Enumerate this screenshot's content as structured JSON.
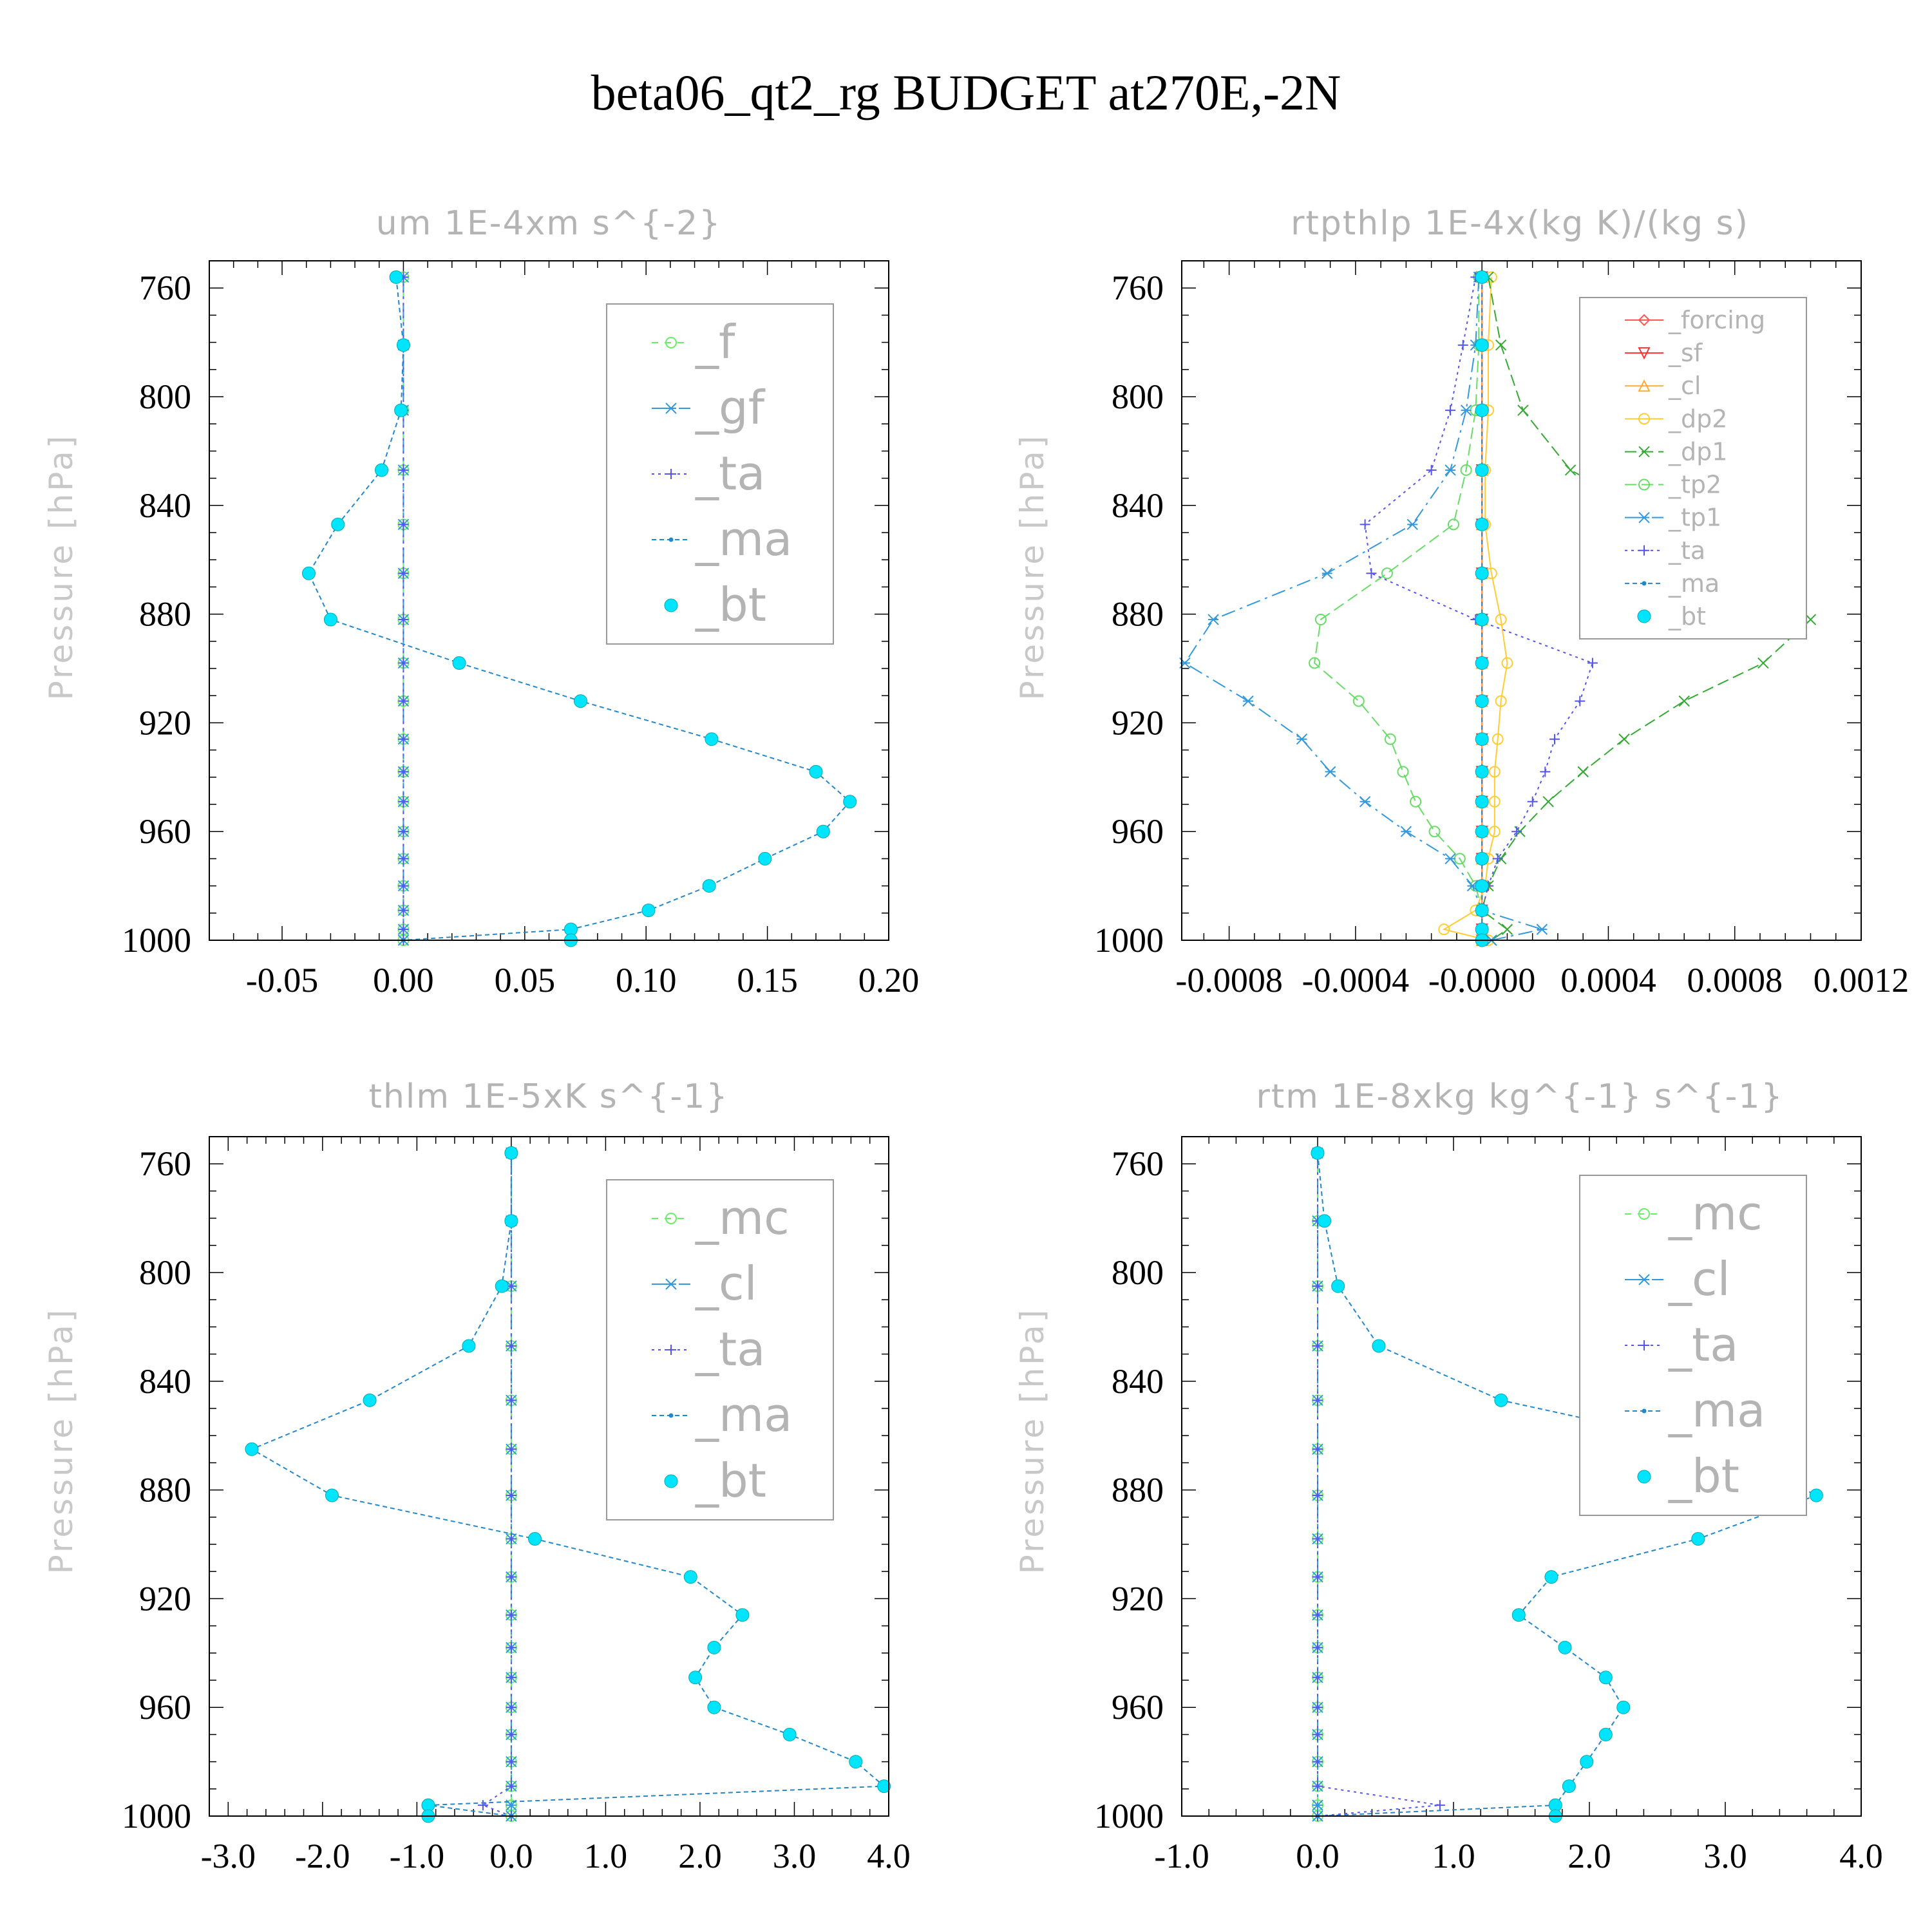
{
  "suptitle": "beta06_qt2_rg  BUDGET at270E,-2N",
  "chart_data": [
    {
      "type": "line",
      "title": "um  1E-4xm s^{-2}",
      "ylabel": "Pressure [hPa]",
      "ylim": [
        1000,
        750
      ],
      "yticks": [
        760,
        800,
        840,
        880,
        920,
        960,
        1000
      ],
      "xlim": [
        -0.08,
        0.2
      ],
      "xticks": [
        -0.05,
        0.0,
        0.05,
        0.1,
        0.15,
        0.2
      ],
      "xticklabels": [
        "-0.05",
        "0.00",
        "0.05",
        "0.10",
        "0.15",
        "0.20"
      ],
      "legend": {
        "position": "top-right",
        "font": "large",
        "entries": [
          "_f",
          "_gf",
          "_ta",
          "_ma",
          "_bt"
        ]
      },
      "p": [
        756,
        781,
        805,
        827,
        847,
        865,
        882,
        898,
        912,
        926,
        938,
        949,
        960,
        970,
        980,
        989,
        996,
        1000
      ],
      "series": [
        {
          "name": "_f",
          "color": "#66ee66",
          "dash": "10,10",
          "marker": "circle-open",
          "values": [
            0,
            0,
            0,
            0,
            0,
            0,
            0,
            0,
            0,
            0,
            0,
            0,
            0,
            0,
            0,
            0,
            0,
            0
          ]
        },
        {
          "name": "_gf",
          "color": "#3399dd",
          "dash": "22,8,4,8",
          "marker": "star",
          "values": [
            0,
            0,
            0,
            0,
            0,
            0,
            0,
            0,
            0,
            0,
            0,
            0,
            0,
            0,
            0,
            0,
            0,
            0
          ]
        },
        {
          "name": "_ta",
          "color": "#5555ee",
          "dash": "4,6",
          "marker": "plus",
          "values": [
            0,
            0,
            0,
            0,
            0,
            0,
            0,
            0,
            0,
            0,
            0,
            0,
            0,
            0,
            0,
            0,
            0,
            0
          ]
        },
        {
          "name": "_ma",
          "color": "#2288cc",
          "dash": "7,5",
          "marker": "dot",
          "values": [
            -0.003,
            0.0,
            -0.001,
            -0.009,
            -0.027,
            -0.039,
            -0.03,
            0.023,
            0.073,
            0.127,
            0.17,
            0.184,
            0.173,
            0.149,
            0.126,
            0.101,
            0.069,
            0.0
          ]
        },
        {
          "name": "_bt",
          "color": "#00e5ff",
          "dash": "",
          "marker": "filled",
          "values": [
            -0.003,
            0.0,
            -0.001,
            -0.009,
            -0.027,
            -0.039,
            -0.03,
            0.023,
            0.073,
            0.127,
            0.17,
            0.184,
            0.173,
            0.149,
            0.126,
            0.101,
            0.069,
            0.069
          ]
        }
      ]
    },
    {
      "type": "line",
      "title": "rtpthlp  1E-4x(kg K)/(kg s)",
      "ylabel": "Pressure [hPa]",
      "ylim": [
        1000,
        750
      ],
      "yticks": [
        760,
        800,
        840,
        880,
        920,
        960,
        1000
      ],
      "xlim": [
        -0.00095,
        0.0012
      ],
      "xticks": [
        -0.0008,
        -0.0004,
        0.0,
        0.0004,
        0.0008,
        0.0012
      ],
      "xticklabels": [
        "-0.0008",
        "-0.0004",
        "-0.0000",
        "0.0004",
        "0.0008",
        "0.0012"
      ],
      "legend": {
        "position": "top-right",
        "font": "small",
        "entries": [
          "_forcing",
          "_sf",
          "_cl",
          "_dp2",
          "_dp1",
          "_tp2",
          "_tp1",
          "_ta",
          "_ma",
          "_bt"
        ]
      },
      "p": [
        756,
        781,
        805,
        827,
        847,
        865,
        882,
        898,
        912,
        926,
        938,
        949,
        960,
        970,
        980,
        989,
        996,
        1000
      ],
      "series": [
        {
          "name": "_forcing",
          "color": "#ff5555",
          "dash": "",
          "marker": "diamond",
          "values": [
            0,
            0,
            0,
            0,
            0,
            0,
            0,
            0,
            0,
            0,
            0,
            0,
            0,
            0,
            0,
            0,
            0,
            0
          ]
        },
        {
          "name": "_sf",
          "color": "#ff3333",
          "dash": "",
          "marker": "tri-down",
          "values": [
            0,
            0,
            0,
            0,
            0,
            0,
            0,
            0,
            0,
            0,
            0,
            0,
            0,
            0,
            0,
            0,
            0,
            0
          ]
        },
        {
          "name": "_cl",
          "color": "#ffaa33",
          "dash": "",
          "marker": "tri-up",
          "values": [
            0,
            0,
            0,
            0,
            0,
            0,
            0,
            0,
            0,
            0,
            0,
            0,
            0,
            0,
            0,
            0,
            0,
            0
          ]
        },
        {
          "name": "_dp2",
          "color": "#ffcc33",
          "dash": "",
          "marker": "circle-open",
          "values": [
            3e-05,
            2e-05,
            2e-05,
            1e-05,
            1e-05,
            3e-05,
            6e-05,
            8e-05,
            6e-05,
            5e-05,
            4e-05,
            4e-05,
            4e-05,
            2e-05,
            1e-05,
            -2e-05,
            -0.00012,
            2e-05
          ]
        },
        {
          "name": "_dp1",
          "color": "#33aa33",
          "dash": "18,8",
          "marker": "cross",
          "values": [
            2e-05,
            6e-05,
            0.00013,
            0.00028,
            0.0006,
            0.0009,
            0.00104,
            0.00089,
            0.00064,
            0.00045,
            0.00032,
            0.00021,
            0.00012,
            6e-05,
            2e-05,
            0.0,
            8e-05,
            3e-05
          ]
        },
        {
          "name": "_tp2",
          "color": "#66dd66",
          "dash": "18,8",
          "marker": "circle-open",
          "values": [
            -1e-05,
            -1e-05,
            -2e-05,
            -5e-05,
            -9e-05,
            -0.0003,
            -0.00051,
            -0.00053,
            -0.00039,
            -0.00029,
            -0.00025,
            -0.00021,
            -0.00015,
            -7e-05,
            -2e-05,
            0.0,
            0.0,
            0.0
          ]
        },
        {
          "name": "_tp1",
          "color": "#3399dd",
          "dash": "22,8,4,8",
          "marker": "star",
          "values": [
            -1e-05,
            -2e-05,
            -5e-05,
            -0.0001,
            -0.00022,
            -0.00049,
            -0.00085,
            -0.00094,
            -0.00074,
            -0.00057,
            -0.00048,
            -0.00037,
            -0.00024,
            -0.0001,
            -3e-05,
            0.0,
            0.00019,
            3e-05
          ]
        },
        {
          "name": "_ta",
          "color": "#5555ee",
          "dash": "4,6",
          "marker": "plus",
          "values": [
            -2e-05,
            -6e-05,
            -0.0001,
            -0.00016,
            -0.00037,
            -0.00035,
            -2e-05,
            0.00035,
            0.00031,
            0.00023,
            0.0002,
            0.00016,
            0.00011,
            5e-05,
            2e-05,
            0.0,
            0.0,
            0.0
          ]
        },
        {
          "name": "_ma",
          "color": "#2288cc",
          "dash": "7,5",
          "marker": "dot",
          "values": [
            0,
            0,
            0,
            0,
            0,
            0,
            0,
            0,
            0,
            0,
            0,
            0,
            0,
            0,
            0,
            0,
            0,
            0
          ]
        },
        {
          "name": "_bt",
          "color": "#00e5ff",
          "dash": "",
          "marker": "filled",
          "values": [
            0,
            0,
            0,
            0,
            0,
            0,
            0,
            0,
            0,
            0,
            0,
            0,
            0,
            0,
            0,
            0,
            0,
            0
          ]
        }
      ]
    },
    {
      "type": "line",
      "title": "thlm  1E-5xK s^{-1}",
      "ylabel": "Pressure [hPa]",
      "ylim": [
        1000,
        750
      ],
      "yticks": [
        760,
        800,
        840,
        880,
        920,
        960,
        1000
      ],
      "xlim": [
        -3.2,
        4.0
      ],
      "xticks": [
        -3.0,
        -2.0,
        -1.0,
        0.0,
        1.0,
        2.0,
        3.0,
        4.0
      ],
      "xticklabels": [
        "-3.0",
        "-2.0",
        "-1.0",
        "0.0",
        "1.0",
        "2.0",
        "3.0",
        "4.0"
      ],
      "legend": {
        "position": "top-right",
        "font": "large",
        "entries": [
          "_mc",
          "_cl",
          "_ta",
          "_ma",
          "_bt"
        ]
      },
      "p": [
        756,
        781,
        805,
        827,
        847,
        865,
        882,
        898,
        912,
        926,
        938,
        949,
        960,
        970,
        980,
        989,
        996,
        1000
      ],
      "series": [
        {
          "name": "_mc",
          "color": "#66ee66",
          "dash": "10,10",
          "marker": "circle-open",
          "values": [
            0,
            0,
            0,
            0,
            0,
            0,
            0,
            0,
            0,
            0,
            0,
            0,
            0,
            0,
            0,
            0,
            0,
            0
          ]
        },
        {
          "name": "_cl",
          "color": "#3399dd",
          "dash": "22,8,4,8",
          "marker": "star",
          "values": [
            0,
            0,
            0,
            0,
            0,
            0,
            0,
            0,
            0,
            0,
            0,
            0,
            0,
            0,
            0,
            0,
            0,
            0
          ]
        },
        {
          "name": "_ta",
          "color": "#5555ee",
          "dash": "4,6",
          "marker": "plus",
          "values": [
            0,
            0,
            0,
            0,
            0,
            0,
            0,
            0,
            0,
            0,
            0,
            0,
            0,
            0,
            0,
            0,
            -0.3,
            0
          ]
        },
        {
          "name": "_ma",
          "color": "#2288cc",
          "dash": "7,5",
          "marker": "dot",
          "values": [
            0.0,
            0.0,
            -0.1,
            -0.45,
            -1.5,
            -2.75,
            -1.9,
            0.25,
            1.9,
            2.45,
            2.15,
            1.95,
            2.15,
            2.95,
            3.65,
            3.95,
            -0.88,
            0.0
          ]
        },
        {
          "name": "_bt",
          "color": "#00e5ff",
          "dash": "",
          "marker": "filled",
          "values": [
            0.0,
            0.0,
            -0.1,
            -0.45,
            -1.5,
            -2.75,
            -1.9,
            0.25,
            1.9,
            2.45,
            2.15,
            1.95,
            2.15,
            2.95,
            3.65,
            3.95,
            -0.88,
            -0.88
          ]
        }
      ]
    },
    {
      "type": "line",
      "title": "rtm  1E-8xkg kg^{-1} s^{-1}",
      "ylabel": "Pressure [hPa]",
      "ylim": [
        1000,
        750
      ],
      "yticks": [
        760,
        800,
        840,
        880,
        920,
        960,
        1000
      ],
      "xlim": [
        -1.0,
        4.0
      ],
      "xticks": [
        -1.0,
        0.0,
        1.0,
        2.0,
        3.0,
        4.0
      ],
      "xticklabels": [
        "-1.0",
        "0.0",
        "1.0",
        "2.0",
        "3.0",
        "4.0"
      ],
      "legend": {
        "position": "top-right",
        "font": "large",
        "entries": [
          "_mc",
          "_cl",
          "_ta",
          "_ma",
          "_bt"
        ]
      },
      "p": [
        756,
        781,
        805,
        827,
        847,
        865,
        882,
        898,
        912,
        926,
        938,
        949,
        960,
        970,
        980,
        989,
        996,
        1000
      ],
      "series": [
        {
          "name": "_mc",
          "color": "#66ee66",
          "dash": "10,10",
          "marker": "circle-open",
          "values": [
            0,
            0,
            0,
            0,
            0,
            0,
            0,
            0,
            0,
            0,
            0,
            0,
            0,
            0,
            0,
            0,
            0,
            0
          ]
        },
        {
          "name": "_cl",
          "color": "#3399dd",
          "dash": "22,8,4,8",
          "marker": "star",
          "values": [
            0,
            0,
            0,
            0,
            0,
            0,
            0,
            0,
            0,
            0,
            0,
            0,
            0,
            0,
            0,
            0,
            0,
            0
          ]
        },
        {
          "name": "_ta",
          "color": "#5555ee",
          "dash": "4,6",
          "marker": "plus",
          "values": [
            0,
            0,
            0,
            0,
            0,
            0,
            0,
            0,
            0,
            0,
            0,
            0,
            0,
            0,
            0,
            0,
            0.9,
            0
          ]
        },
        {
          "name": "_ma",
          "color": "#2288cc",
          "dash": "7,5",
          "marker": "dot",
          "values": [
            0.0,
            0.05,
            0.15,
            0.45,
            1.35,
            3.0,
            3.67,
            2.8,
            1.72,
            1.48,
            1.82,
            2.12,
            2.25,
            2.12,
            1.98,
            1.85,
            1.75,
            0.0
          ]
        },
        {
          "name": "_bt",
          "color": "#00e5ff",
          "dash": "",
          "marker": "filled",
          "values": [
            0.0,
            0.05,
            0.15,
            0.45,
            1.35,
            3.0,
            3.67,
            2.8,
            1.72,
            1.48,
            1.82,
            2.12,
            2.25,
            2.12,
            1.98,
            1.85,
            1.75,
            1.75
          ]
        }
      ]
    }
  ]
}
